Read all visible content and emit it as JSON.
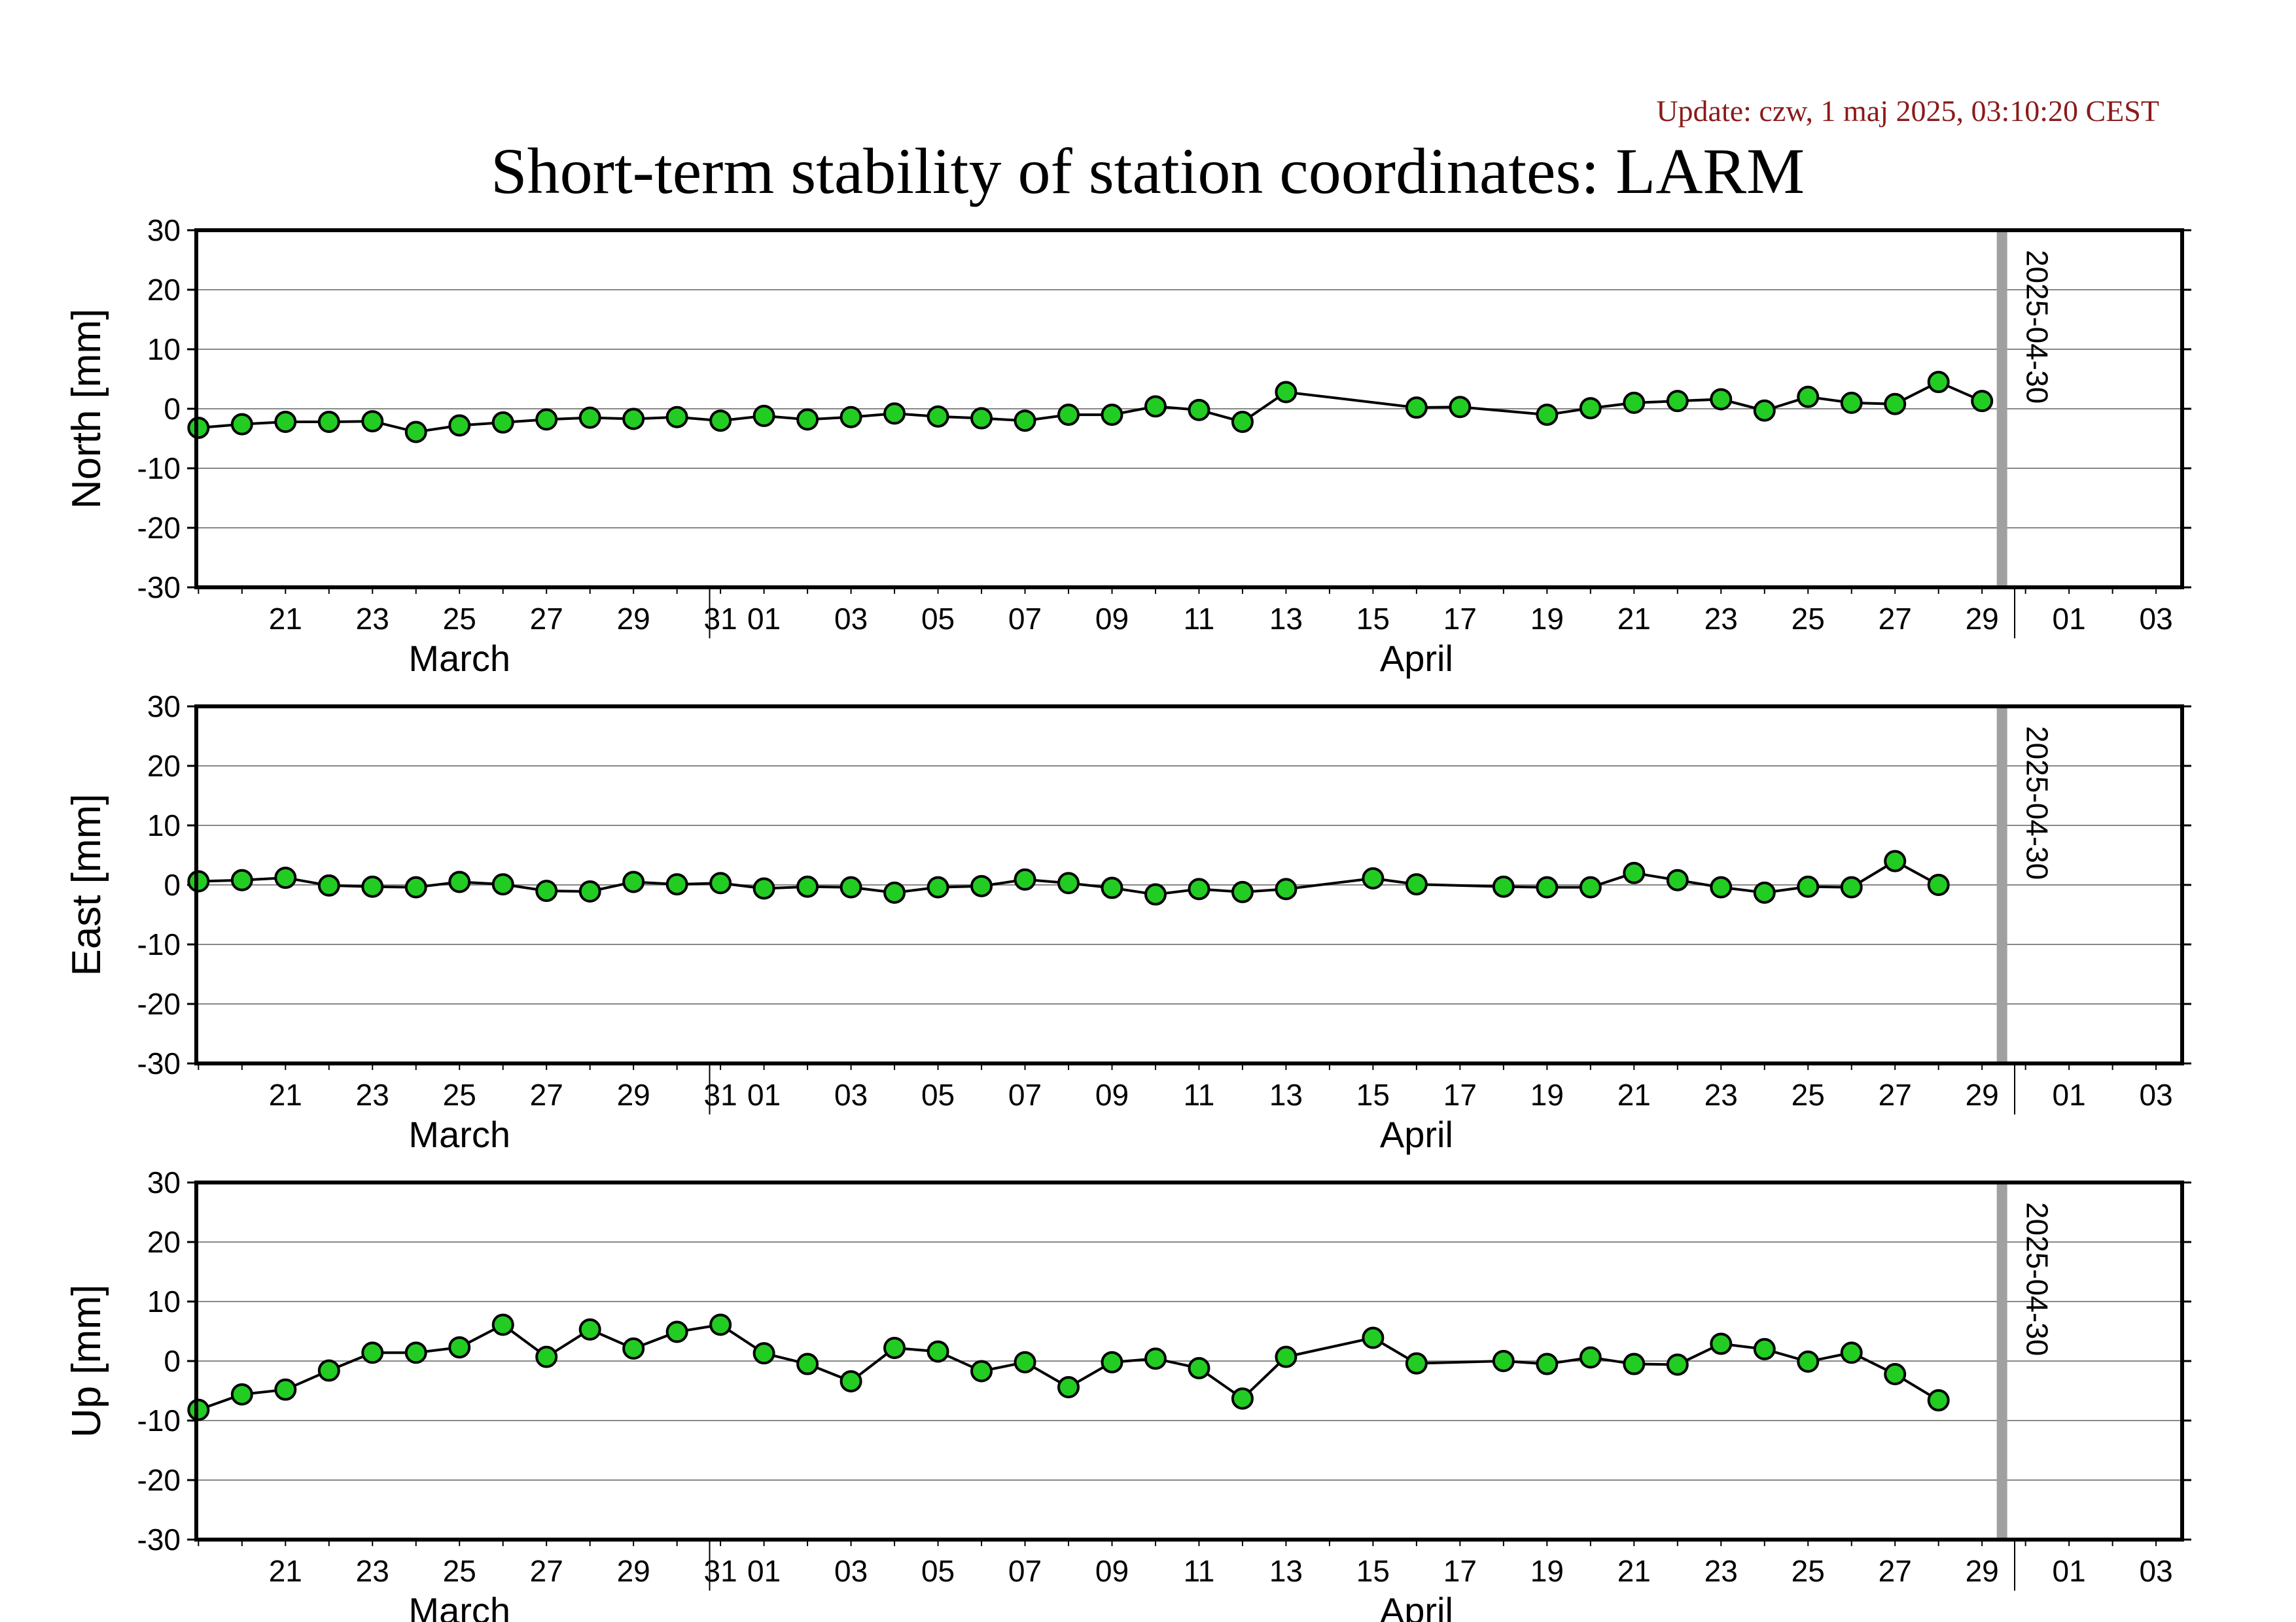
{
  "header": {
    "update": "Update: czw, 1 maj 2025, 03:10:20 CEST",
    "title": "Short-term stability of station coordinates: LARM"
  },
  "chart_data": {
    "type": "line",
    "x_range": [
      "2025-03-19",
      "2025-05-03"
    ],
    "ylim": [
      -30,
      30
    ],
    "yticks": [
      -30,
      -20,
      -10,
      0,
      10,
      20,
      30
    ],
    "grid": true,
    "marker_line": {
      "date": "2025-04-30",
      "label": "2025-04-30",
      "color": "#a0a0a0"
    },
    "x_tick_labels": [
      {
        "date": "2025-03-21",
        "label": "21"
      },
      {
        "date": "2025-03-23",
        "label": "23"
      },
      {
        "date": "2025-03-25",
        "label": "25"
      },
      {
        "date": "2025-03-27",
        "label": "27"
      },
      {
        "date": "2025-03-29",
        "label": "29"
      },
      {
        "date": "2025-03-31",
        "label": "31"
      },
      {
        "date": "2025-04-01",
        "label": "01"
      },
      {
        "date": "2025-04-03",
        "label": "03"
      },
      {
        "date": "2025-04-05",
        "label": "05"
      },
      {
        "date": "2025-04-07",
        "label": "07"
      },
      {
        "date": "2025-04-09",
        "label": "09"
      },
      {
        "date": "2025-04-11",
        "label": "11"
      },
      {
        "date": "2025-04-13",
        "label": "13"
      },
      {
        "date": "2025-04-15",
        "label": "15"
      },
      {
        "date": "2025-04-17",
        "label": "17"
      },
      {
        "date": "2025-04-19",
        "label": "19"
      },
      {
        "date": "2025-04-21",
        "label": "21"
      },
      {
        "date": "2025-04-23",
        "label": "23"
      },
      {
        "date": "2025-04-25",
        "label": "25"
      },
      {
        "date": "2025-04-27",
        "label": "27"
      },
      {
        "date": "2025-04-29",
        "label": "29"
      },
      {
        "date": "2025-05-01",
        "label": "01"
      },
      {
        "date": "2025-05-03",
        "label": "03"
      }
    ],
    "month_labels": [
      {
        "date": "2025-03-25",
        "label": "March"
      },
      {
        "date": "2025-04-16",
        "label": "April"
      }
    ],
    "month_boundaries": [
      "2025-03-31",
      "2025-04-30"
    ],
    "point_color": "#22cc22",
    "panels": [
      {
        "ylabel": "North [mm]",
        "points": [
          [
            "2025-03-19",
            -3.2
          ],
          [
            "2025-03-20",
            -2.6
          ],
          [
            "2025-03-21",
            -2.2
          ],
          [
            "2025-03-22",
            -2.2
          ],
          [
            "2025-03-23",
            -2.1
          ],
          [
            "2025-03-24",
            -3.9
          ],
          [
            "2025-03-25",
            -2.8
          ],
          [
            "2025-03-26",
            -2.3
          ],
          [
            "2025-03-27",
            -1.8
          ],
          [
            "2025-03-28",
            -1.5
          ],
          [
            "2025-03-29",
            -1.7
          ],
          [
            "2025-03-30",
            -1.4
          ],
          [
            "2025-03-31",
            -2.0
          ],
          [
            "2025-04-01",
            -1.2
          ],
          [
            "2025-04-02",
            -1.8
          ],
          [
            "2025-04-03",
            -1.4
          ],
          [
            "2025-04-04",
            -0.8
          ],
          [
            "2025-04-05",
            -1.3
          ],
          [
            "2025-04-06",
            -1.6
          ],
          [
            "2025-04-07",
            -2.0
          ],
          [
            "2025-04-08",
            -1.0
          ],
          [
            "2025-04-09",
            -1.0
          ],
          [
            "2025-04-10",
            0.4
          ],
          [
            "2025-04-11",
            -0.2
          ],
          [
            "2025-04-12",
            -2.2
          ],
          [
            "2025-04-13",
            2.8
          ],
          [
            "2025-04-16",
            0.2
          ],
          [
            "2025-04-17",
            0.3
          ],
          [
            "2025-04-19",
            -1.0
          ],
          [
            "2025-04-20",
            0.1
          ],
          [
            "2025-04-21",
            1.0
          ],
          [
            "2025-04-22",
            1.3
          ],
          [
            "2025-04-23",
            1.6
          ],
          [
            "2025-04-24",
            -0.3
          ],
          [
            "2025-04-25",
            2.0
          ],
          [
            "2025-04-26",
            1.0
          ],
          [
            "2025-04-27",
            0.8
          ],
          [
            "2025-04-28",
            4.5
          ],
          [
            "2025-04-29",
            1.3
          ]
        ]
      },
      {
        "ylabel": "East [mm]",
        "points": [
          [
            "2025-03-19",
            0.6
          ],
          [
            "2025-03-20",
            0.8
          ],
          [
            "2025-03-21",
            1.2
          ],
          [
            "2025-03-22",
            -0.1
          ],
          [
            "2025-03-23",
            -0.3
          ],
          [
            "2025-03-24",
            -0.4
          ],
          [
            "2025-03-25",
            0.5
          ],
          [
            "2025-03-26",
            0.1
          ],
          [
            "2025-03-27",
            -1.0
          ],
          [
            "2025-03-28",
            -1.1
          ],
          [
            "2025-03-29",
            0.5
          ],
          [
            "2025-03-30",
            0.1
          ],
          [
            "2025-03-31",
            0.3
          ],
          [
            "2025-04-01",
            -0.6
          ],
          [
            "2025-04-02",
            -0.3
          ],
          [
            "2025-04-03",
            -0.4
          ],
          [
            "2025-04-04",
            -1.3
          ],
          [
            "2025-04-05",
            -0.4
          ],
          [
            "2025-04-06",
            -0.2
          ],
          [
            "2025-04-07",
            0.9
          ],
          [
            "2025-04-08",
            0.3
          ],
          [
            "2025-04-09",
            -0.5
          ],
          [
            "2025-04-10",
            -1.6
          ],
          [
            "2025-04-11",
            -0.7
          ],
          [
            "2025-04-12",
            -1.2
          ],
          [
            "2025-04-13",
            -0.7
          ],
          [
            "2025-04-15",
            1.1
          ],
          [
            "2025-04-16",
            0.1
          ],
          [
            "2025-04-18",
            -0.3
          ],
          [
            "2025-04-19",
            -0.4
          ],
          [
            "2025-04-20",
            -0.4
          ],
          [
            "2025-04-21",
            2.0
          ],
          [
            "2025-04-22",
            0.8
          ],
          [
            "2025-04-23",
            -0.4
          ],
          [
            "2025-04-24",
            -1.3
          ],
          [
            "2025-04-25",
            -0.3
          ],
          [
            "2025-04-26",
            -0.4
          ],
          [
            "2025-04-27",
            4.0
          ],
          [
            "2025-04-28",
            0.0
          ]
        ]
      },
      {
        "ylabel": "Up [mm]",
        "points": [
          [
            "2025-03-19",
            -8.2
          ],
          [
            "2025-03-20",
            -5.6
          ],
          [
            "2025-03-21",
            -4.8
          ],
          [
            "2025-03-22",
            -1.6
          ],
          [
            "2025-03-23",
            1.4
          ],
          [
            "2025-03-24",
            1.4
          ],
          [
            "2025-03-25",
            2.3
          ],
          [
            "2025-03-26",
            6.1
          ],
          [
            "2025-03-27",
            0.7
          ],
          [
            "2025-03-28",
            5.3
          ],
          [
            "2025-03-29",
            2.1
          ],
          [
            "2025-03-30",
            4.9
          ],
          [
            "2025-03-31",
            6.1
          ],
          [
            "2025-04-01",
            1.3
          ],
          [
            "2025-04-02",
            -0.5
          ],
          [
            "2025-04-03",
            -3.4
          ],
          [
            "2025-04-04",
            2.2
          ],
          [
            "2025-04-05",
            1.6
          ],
          [
            "2025-04-06",
            -1.7
          ],
          [
            "2025-04-07",
            -0.2
          ],
          [
            "2025-04-08",
            -4.4
          ],
          [
            "2025-04-09",
            -0.2
          ],
          [
            "2025-04-10",
            0.4
          ],
          [
            "2025-04-11",
            -1.2
          ],
          [
            "2025-04-12",
            -6.3
          ],
          [
            "2025-04-13",
            0.7
          ],
          [
            "2025-04-15",
            3.9
          ],
          [
            "2025-04-16",
            -0.4
          ],
          [
            "2025-04-18",
            0.0
          ],
          [
            "2025-04-19",
            -0.5
          ],
          [
            "2025-04-20",
            0.6
          ],
          [
            "2025-04-21",
            -0.5
          ],
          [
            "2025-04-22",
            -0.6
          ],
          [
            "2025-04-23",
            2.9
          ],
          [
            "2025-04-24",
            2.0
          ],
          [
            "2025-04-25",
            -0.1
          ],
          [
            "2025-04-26",
            1.4
          ],
          [
            "2025-04-27",
            -2.2
          ],
          [
            "2025-04-28",
            -6.6
          ]
        ]
      }
    ]
  }
}
